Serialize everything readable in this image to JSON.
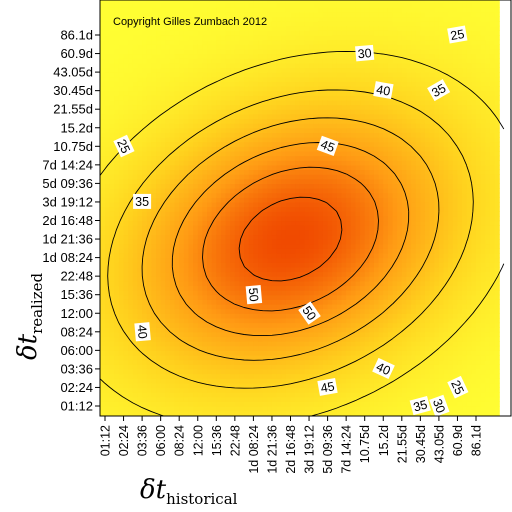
{
  "chart_data": {
    "type": "heatmap",
    "title": "",
    "watermark": "Copyright Gilles Zumbach 2012",
    "xlabel": {
      "symbol": "δt",
      "subscript": "historical"
    },
    "ylabel": {
      "symbol": "δt",
      "subscript": "realized"
    },
    "x_ticks": [
      "01:12",
      "02:24",
      "03:36",
      "06:00",
      "08:24",
      "12:00",
      "15:36",
      "22:48",
      "1d 08:24",
      "1d 21:36",
      "2d 16:48",
      "3d 19:12",
      "5d 09:36",
      "7d 14:24",
      "10.75d",
      "15.2d",
      "21.55d",
      "30.45d",
      "43.05d",
      "60.9d",
      "86.1d"
    ],
    "y_ticks": [
      "01:12",
      "02:24",
      "03:36",
      "06:00",
      "08:24",
      "12:00",
      "15:36",
      "22:48",
      "1d 08:24",
      "1d 21:36",
      "2d 16:48",
      "3d 19:12",
      "5d 09:36",
      "7d 14:24",
      "10.75d",
      "15.2d",
      "21.55d",
      "30.45d",
      "43.05d",
      "60.9d",
      "86.1d"
    ],
    "contour_levels": [
      25,
      30,
      35,
      40,
      45,
      50
    ],
    "peak": {
      "x": "2d 16:48",
      "y": "1d 21:36",
      "value": 53
    },
    "colormap": [
      "#ffff33",
      "#ffd21e",
      "#ff9a14",
      "#f04a00"
    ],
    "contour_labels": [
      {
        "text": "25",
        "x": "60.9d",
        "y": "86.1d",
        "angle": 10
      },
      {
        "text": "30",
        "x": "10.75d",
        "y": "60.9d",
        "angle": 5
      },
      {
        "text": "35",
        "x": "43.05d",
        "y": "30.45d",
        "angle": 30
      },
      {
        "text": "40",
        "x": "15.2d",
        "y": "30.45d",
        "angle": -10
      },
      {
        "text": "45",
        "x": "5d 09:36",
        "y": "10.75d",
        "angle": -20
      },
      {
        "text": "25",
        "x": "02:24",
        "y": "10.75d",
        "angle": -65
      },
      {
        "text": "35",
        "x": "03:36",
        "y": "3d 19:12",
        "angle": 0
      },
      {
        "text": "50",
        "x": "1d 08:24",
        "y": "15:36",
        "angle": -85
      },
      {
        "text": "50",
        "x": "3d 19:12",
        "y": "12:00",
        "angle": -55
      },
      {
        "text": "40",
        "x": "03:36",
        "y": "08:24",
        "angle": -85
      },
      {
        "text": "45",
        "x": "5d 09:36",
        "y": "02:24",
        "angle": 10
      },
      {
        "text": "40",
        "x": "15.2d",
        "y": "03:36",
        "angle": -25
      },
      {
        "text": "35",
        "x": "30.45d",
        "y": "01:12",
        "angle": 15
      },
      {
        "text": "30",
        "x": "43.05d",
        "y": "01:12",
        "angle": -70
      },
      {
        "text": "25",
        "x": "60.9d",
        "y": "02:24",
        "angle": -65
      }
    ]
  }
}
